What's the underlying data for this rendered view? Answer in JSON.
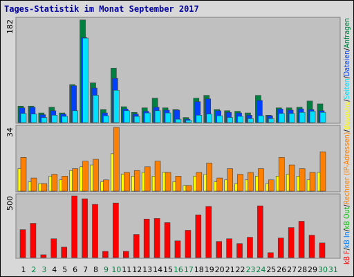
{
  "chart_data": {
    "type": "bar",
    "title": "Tages-Statistik im Monat September 2017",
    "categories": [
      "1",
      "2",
      "3",
      "4",
      "5",
      "6",
      "7",
      "8",
      "9",
      "10",
      "11",
      "12",
      "13",
      "14",
      "15",
      "16",
      "17",
      "18",
      "19",
      "20",
      "21",
      "22",
      "23",
      "24",
      "25",
      "26",
      "27",
      "28",
      "29",
      "30",
      "31"
    ],
    "category_colors": [
      "#000000",
      "#008040",
      "#008040",
      "#000000",
      "#000000",
      "#000000",
      "#000000",
      "#000000",
      "#008040",
      "#008040",
      "#000000",
      "#000000",
      "#000000",
      "#000000",
      "#000000",
      "#008040",
      "#008040",
      "#000000",
      "#000000",
      "#000000",
      "#000000",
      "#000000",
      "#008040",
      "#008040",
      "#000000",
      "#000000",
      "#000000",
      "#000000",
      "#000000",
      "#008040",
      "#008040"
    ],
    "legend_separator": "/",
    "legend": [
      {
        "name": "kB F",
        "color": "#ff0000"
      },
      {
        "name": "kB In",
        "color": "#0080ff"
      },
      {
        "name": "kB Out",
        "color": "#00c000"
      },
      {
        "name": "Rechner (IP-Adressen)",
        "color": "#ff8000"
      },
      {
        "name": "Besuche",
        "color": "#ffff00"
      },
      {
        "name": "Seiten",
        "color": "#00e0ff"
      },
      {
        "name": "Dateien",
        "color": "#0040ff"
      },
      {
        "name": "Anfragen",
        "color": "#008040"
      }
    ],
    "panels": [
      {
        "ylim": [
          0,
          182
        ],
        "yticks": [
          182
        ],
        "series": [
          {
            "color": "#008040",
            "values": [
              29,
              29,
              17,
              27,
              17,
              67,
              181,
              70,
              23,
              96,
              28,
              18,
              26,
              43,
              26,
              23,
              9,
              43,
              48,
              23,
              21,
              20,
              17,
              48,
              13,
              26,
              26,
              27,
              38,
              33,
              null
            ]
          },
          {
            "color": "#0040ff",
            "values": [
              26,
              27,
              14,
              21,
              15,
              65,
              150,
              61,
              17,
              78,
              24,
              15,
              20,
              27,
              22,
              22,
              6,
              37,
              42,
              21,
              18,
              17,
              13,
              39,
              12,
              24,
              22,
              24,
              23,
              21,
              null
            ]
          },
          {
            "color": "#00e0ff",
            "values": [
              16,
              15,
              9,
              13,
              11,
              21,
              149,
              48,
              12,
              57,
              21,
              11,
              17,
              21,
              17,
              6,
              4,
              13,
              15,
              12,
              9,
              11,
              7,
              12,
              7,
              16,
              16,
              18,
              20,
              18,
              null
            ]
          }
        ]
      },
      {
        "ylim": [
          0,
          34
        ],
        "yticks": [
          34
        ],
        "series": [
          {
            "color": "#ffff00",
            "values": [
              12,
              5,
              4,
              8,
              6,
              11,
              13,
              14,
              5,
              20,
              9,
              8,
              10,
              8,
              10,
              5,
              3,
              8,
              9,
              5,
              6,
              4,
              6,
              8,
              4,
              8,
              9,
              8,
              6,
              10,
              null
            ]
          },
          {
            "color": "#ff8000",
            "values": [
              18,
              7,
              4,
              9,
              8,
              12,
              16,
              17,
              6,
              34,
              10,
              11,
              13,
              16,
              10,
              8,
              3,
              10,
              15,
              7,
              12,
              9,
              10,
              12,
              6,
              18,
              14,
              12,
              10,
              21,
              null
            ]
          }
        ]
      },
      {
        "ylim": [
          0,
          500
        ],
        "yticks": [
          500
        ],
        "series": [
          {
            "color": "#ff0000",
            "values": [
              227,
              278,
              23,
              153,
              85,
              500,
              477,
              432,
              51,
              443,
              51,
              188,
              313,
              318,
              284,
              136,
              222,
              347,
              415,
              131,
              153,
              114,
              165,
              420,
              40,
              159,
              244,
              295,
              182,
              119,
              null
            ]
          }
        ]
      }
    ]
  }
}
